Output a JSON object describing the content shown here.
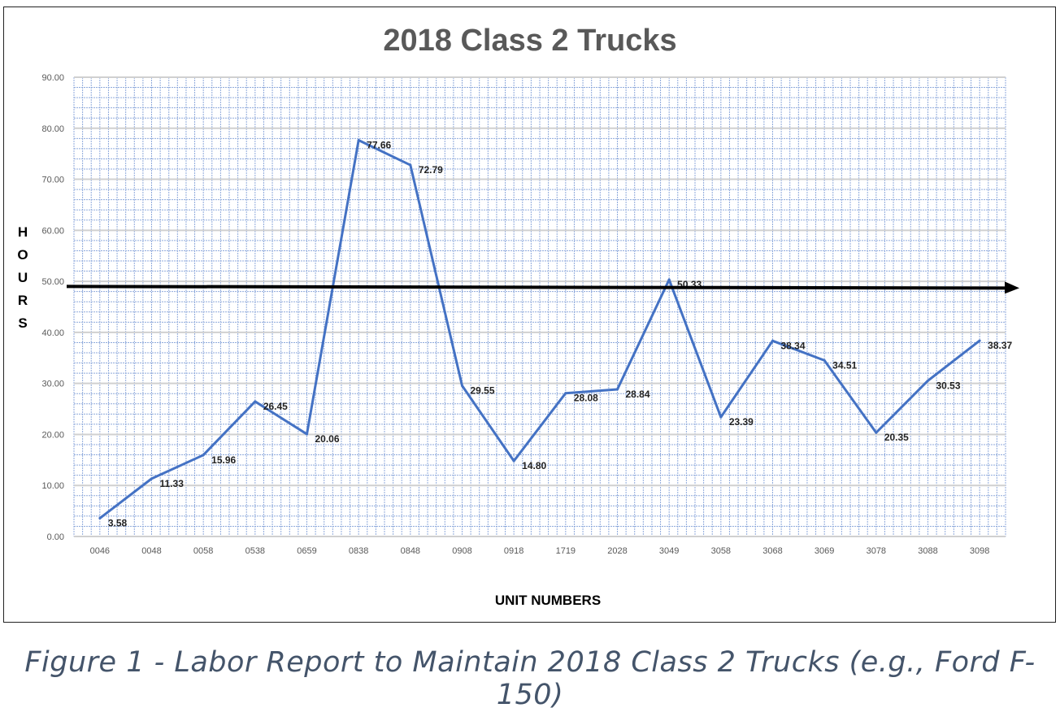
{
  "chart_data": {
    "type": "line",
    "title": "2018 Class 2 Trucks",
    "xlabel": "UNIT NUMBERS",
    "ylabel": "HOURS",
    "categories": [
      "0046",
      "0048",
      "0058",
      "0538",
      "0659",
      "0838",
      "0848",
      "0908",
      "0918",
      "1719",
      "2028",
      "3049",
      "3058",
      "3068",
      "3069",
      "3078",
      "3088",
      "3098"
    ],
    "values": [
      3.58,
      11.33,
      15.96,
      26.45,
      20.06,
      77.66,
      72.79,
      29.55,
      14.8,
      28.08,
      28.84,
      50.33,
      23.39,
      38.34,
      34.51,
      20.35,
      30.53,
      38.37
    ],
    "data_labels": [
      "3.58",
      "11.33",
      "15.96",
      "26.45",
      "20.06",
      "77.66",
      "72.79",
      "29.55",
      "14.80",
      "28.08",
      "28.84",
      "50.33",
      "23.39",
      "38.34",
      "34.51",
      "20.35",
      "30.53",
      "38.37"
    ],
    "yticks": [
      "0.00",
      "10.00",
      "20.00",
      "30.00",
      "40.00",
      "50.00",
      "60.00",
      "70.00",
      "80.00",
      "90.00"
    ],
    "ylim": [
      0,
      90
    ],
    "grid": true,
    "line_color": "#4472c4",
    "grid_color": "#8faadc",
    "reference_arrow": {
      "y": 49,
      "color": "#000000"
    }
  },
  "caption": "Figure 1 - Labor Report to Maintain 2018 Class 2 Trucks (e.g., Ford F-150)"
}
